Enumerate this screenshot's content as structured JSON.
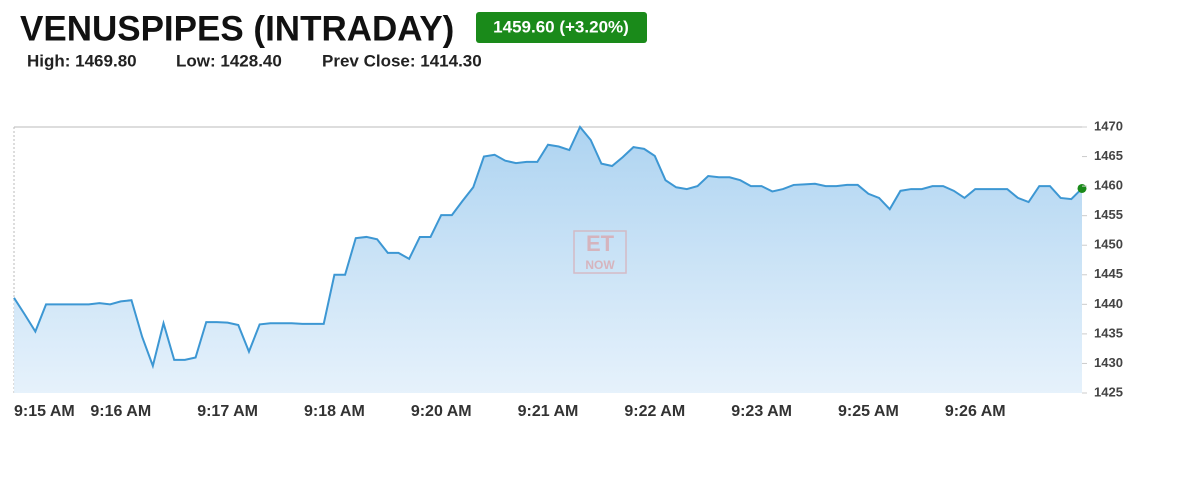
{
  "header": {
    "title": "VENUSPIPES (INTRADAY)",
    "badge": "1459.60 (+3.20%)",
    "high": "High: 1469.80",
    "low": "Low: 1428.40",
    "prev_close": "Prev Close: 1414.30"
  },
  "watermark": {
    "top": "ET",
    "bottom": "NOW"
  },
  "chart_data": {
    "type": "area",
    "categories": [
      "9:15 AM",
      null,
      null,
      null,
      null,
      null,
      null,
      null,
      null,
      null,
      "9:16 AM",
      null,
      null,
      null,
      null,
      null,
      null,
      null,
      null,
      null,
      "9:17 AM",
      null,
      null,
      null,
      null,
      null,
      null,
      null,
      null,
      null,
      "9:18 AM",
      null,
      null,
      null,
      null,
      null,
      null,
      null,
      null,
      null,
      "9:20 AM",
      null,
      null,
      null,
      null,
      null,
      null,
      null,
      null,
      null,
      "9:21 AM",
      null,
      null,
      null,
      null,
      null,
      null,
      null,
      null,
      null,
      "9:22 AM",
      null,
      null,
      null,
      null,
      null,
      null,
      null,
      null,
      null,
      "9:23 AM",
      null,
      null,
      null,
      null,
      null,
      null,
      null,
      null,
      null,
      "9:25 AM",
      null,
      null,
      null,
      null,
      null,
      null,
      null,
      null,
      null,
      "9:26 AM",
      null,
      null,
      null,
      null,
      null,
      null,
      null,
      null,
      null,
      null
    ],
    "series": [
      {
        "color": "#3d97d3",
        "values": [
          1441.1,
          1438.3,
          1435.4,
          1440,
          1440,
          1440,
          1440,
          1440,
          1440.2,
          1440,
          1440.5,
          1440.7,
          1434.5,
          1429.6,
          1436.8,
          1430.6,
          1430.6,
          1431,
          1437,
          1437,
          1436.9,
          1436.5,
          1432,
          1436.6,
          1436.8,
          1436.8,
          1436.8,
          1436.7,
          1436.7,
          1436.7,
          1445,
          1445,
          1451.2,
          1451.4,
          1451,
          1448.7,
          1448.7,
          1447.7,
          1451.4,
          1451.4,
          1455.1,
          1455.1,
          1457.5,
          1459.8,
          1465,
          1465.3,
          1464.3,
          1463.9,
          1464.1,
          1464.1,
          1467,
          1466.7,
          1466.1,
          1470,
          1467.8,
          1463.8,
          1463.4,
          1464.9,
          1466.6,
          1466.3,
          1465.1,
          1461,
          1459.8,
          1459.5,
          1460,
          1461.7,
          1461.5,
          1461.5,
          1461,
          1460,
          1460,
          1459.1,
          1459.5,
          1460.2,
          1460.3,
          1460.4,
          1460,
          1460,
          1460.2,
          1460.2,
          1458.7,
          1458,
          1456.1,
          1459.2,
          1459.5,
          1459.5,
          1460,
          1460,
          1459.2,
          1458,
          1459.5,
          1459.5,
          1459.5,
          1459.5,
          1458,
          1457.3,
          1460,
          1460,
          1458,
          1457.8,
          1459.6
        ]
      }
    ],
    "last_point_color": "#1a8a1a",
    "ylim": [
      1425,
      1470
    ],
    "yticks": [
      1425,
      1430,
      1435,
      1440,
      1445,
      1450,
      1455,
      1460,
      1465,
      1470
    ]
  }
}
